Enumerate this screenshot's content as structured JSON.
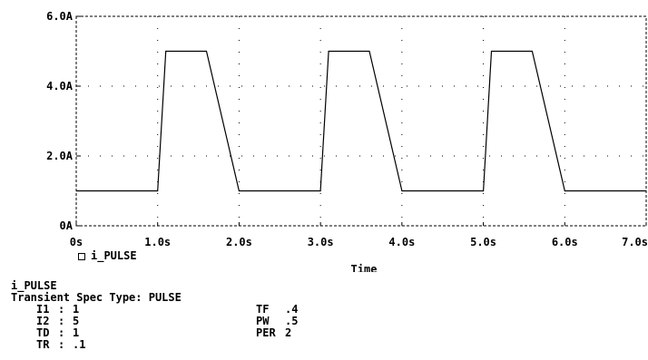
{
  "chart_data": {
    "type": "line",
    "series": [
      {
        "name": "i_PULSE",
        "x": [
          0,
          1.0,
          1.1,
          1.6,
          2.0,
          3.0,
          3.1,
          3.6,
          4.0,
          5.0,
          5.1,
          5.6,
          6.0,
          7.0
        ],
        "y": [
          1,
          1,
          5,
          5,
          1,
          1,
          5,
          5,
          1,
          1,
          5,
          5,
          1,
          1
        ]
      }
    ],
    "xlabel": "Time",
    "ylabel": "",
    "xlim": [
      0,
      7.0
    ],
    "ylim": [
      0,
      6.0
    ],
    "x_ticks": [
      "0s",
      "1.0s",
      "2.0s",
      "3.0s",
      "4.0s",
      "5.0s",
      "6.0s",
      "7.0s"
    ],
    "y_ticks": [
      "0A",
      "2.0A",
      "4.0A",
      "6.0A"
    ],
    "grid": "dotted",
    "legend": "bottom-left",
    "line_color": "#000000"
  },
  "spec": {
    "name": "i_PULSE",
    "type_line": "Transient Spec Type: PULSE",
    "left_params": [
      {
        "key": "I1",
        "value": "1"
      },
      {
        "key": "I2",
        "value": "5"
      },
      {
        "key": "TD",
        "value": "1"
      },
      {
        "key": "TR",
        "value": ".1"
      }
    ],
    "right_params": [
      {
        "key": "TF",
        "value": ".4"
      },
      {
        "key": "PW",
        "value": ".5"
      },
      {
        "key": "PER",
        "value": "2"
      }
    ]
  }
}
